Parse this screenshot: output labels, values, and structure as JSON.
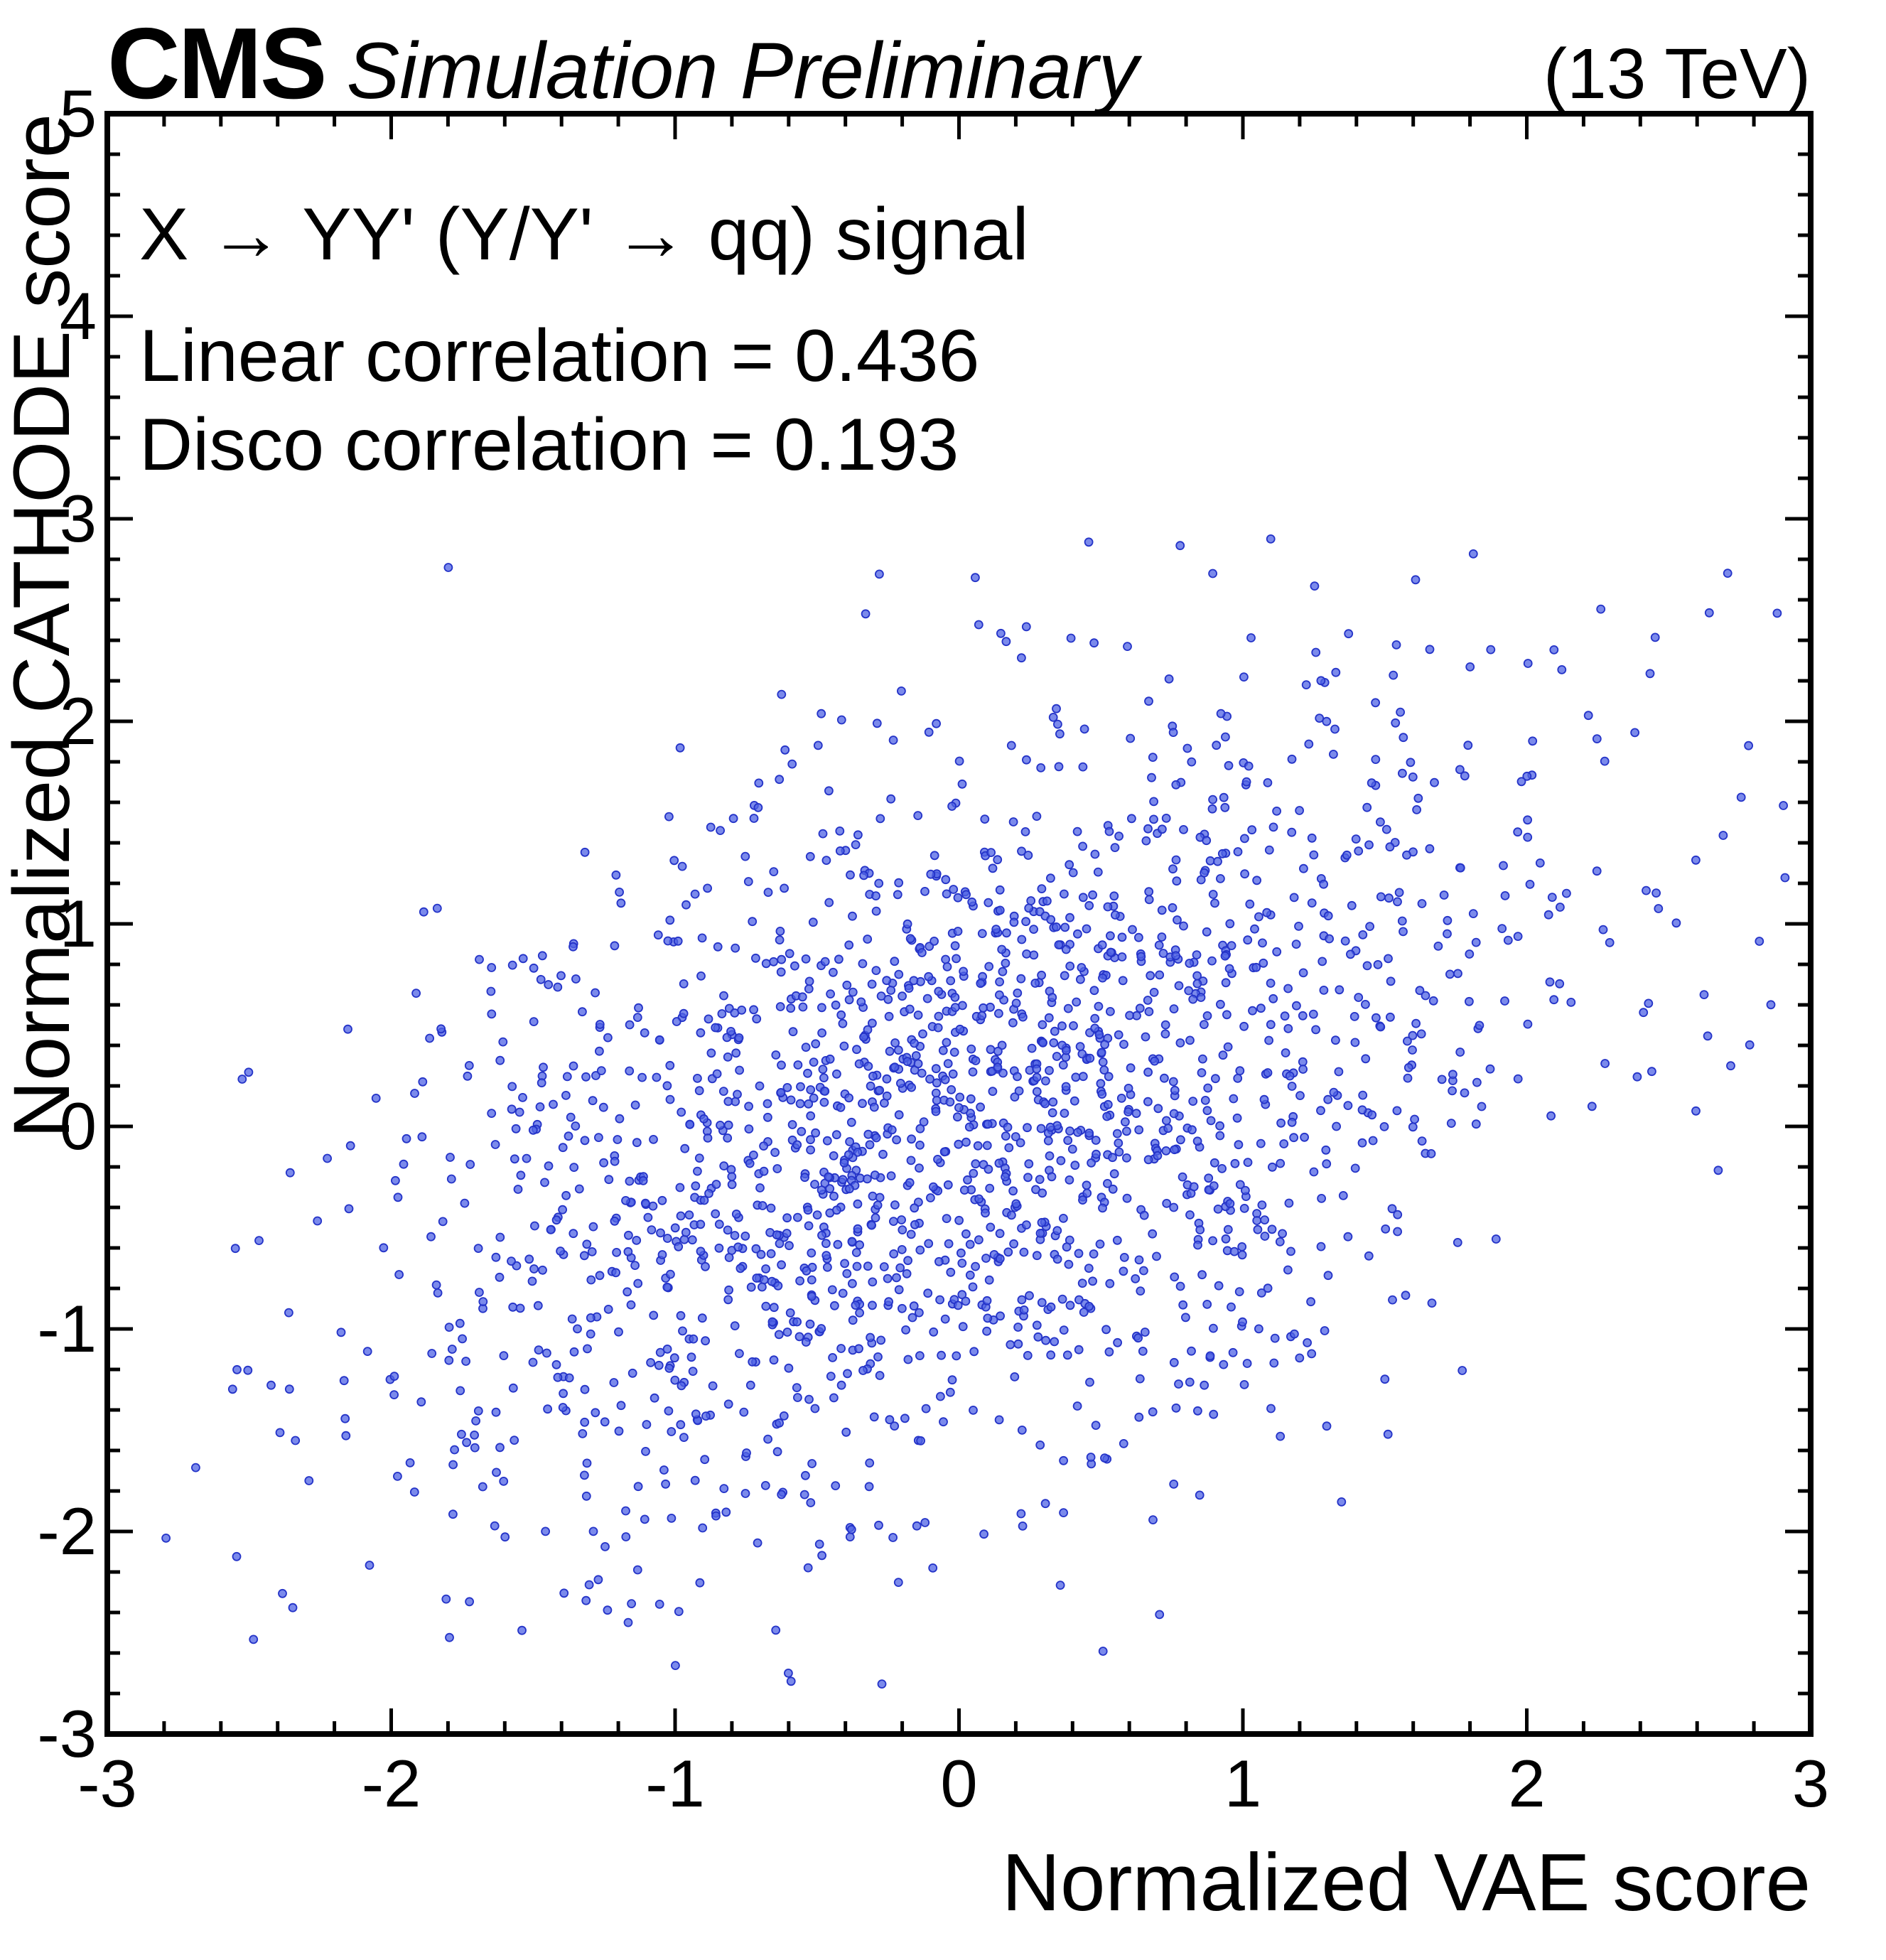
{
  "header": {
    "experiment": "CMS",
    "label": "Simulation Preliminary",
    "energy": "(13 TeV)"
  },
  "annotations": {
    "process": "X → YY' (Y/Y' → qq) signal",
    "linear_correlation": "Linear correlation = 0.436",
    "disco_correlation": "Disco correlation = 0.193"
  },
  "chart_data": {
    "type": "scatter",
    "title": "CMS Simulation Preliminary (13 TeV)",
    "xlabel": "Normalized VAE score",
    "ylabel": "Normalized CATHODE score",
    "xlim": [
      -3,
      3
    ],
    "ylim": [
      -3,
      5
    ],
    "x_ticks": [
      -3,
      -2,
      -1,
      0,
      1,
      2,
      3
    ],
    "y_ticks": [
      -3,
      -2,
      -1,
      0,
      1,
      2,
      3,
      4,
      5
    ],
    "minor_tick_step": 0.2,
    "grid": false,
    "legend": "none",
    "stats": {
      "linear_correlation": 0.436,
      "disco_correlation": 0.193
    },
    "series": [
      {
        "name": "X → YY' (Y/Y' → qq) signal",
        "n_points": 2000,
        "distribution": {
          "kind": "bivariate_normal",
          "mean": [
            0.0,
            0.0
          ],
          "std": [
            1.05,
            1.05
          ],
          "correlation": 0.436,
          "seed": 20130436,
          "clip": {
            "x": [
              -2.95,
              2.95
            ],
            "y": [
              -2.88,
              2.95
            ]
          }
        },
        "marker": {
          "shape": "circle",
          "fill": "#4f63e4",
          "stroke": "#2433c8",
          "radius_px": 5.5,
          "opacity": 0.75
        }
      }
    ]
  },
  "colors": {
    "marker_fill": "#4f63e4",
    "marker_edge": "#2433c8",
    "frame": "#000000",
    "background": "#ffffff",
    "text": "#000000"
  }
}
